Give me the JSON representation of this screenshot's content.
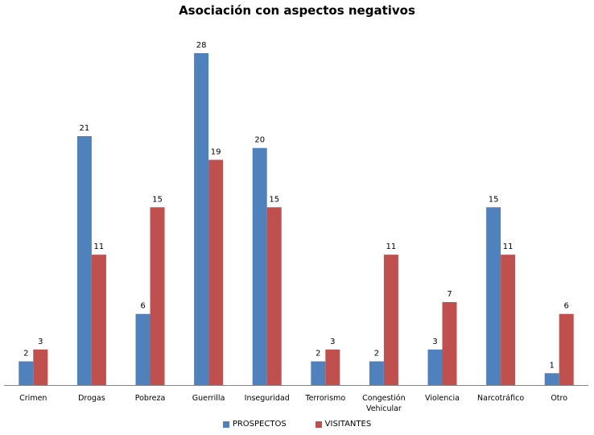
{
  "chart_data": {
    "type": "bar",
    "title": "Asociación con aspectos negativos",
    "categories": [
      "Crimen",
      "Drogas",
      "Pobreza",
      "Guerrilla",
      "Inseguridad",
      "Terrorismo",
      "Congestión Vehicular",
      "Violencia",
      "Narcotráfico",
      "Otro"
    ],
    "category_lines": [
      [
        "Crimen"
      ],
      [
        "Drogas"
      ],
      [
        "Pobreza"
      ],
      [
        "Guerrilla"
      ],
      [
        "Inseguridad"
      ],
      [
        "Terrorismo"
      ],
      [
        "Congestión",
        "Vehicular"
      ],
      [
        "Violencia"
      ],
      [
        "Narcotráfico"
      ],
      [
        "Otro"
      ]
    ],
    "series": [
      {
        "name": "PROSPECTOS",
        "values": [
          2,
          21,
          6,
          28,
          20,
          2,
          2,
          3,
          15,
          1
        ],
        "color": "#4F81BD"
      },
      {
        "name": "VISITANTES",
        "values": [
          3,
          11,
          15,
          19,
          15,
          3,
          11,
          7,
          11,
          6
        ],
        "color": "#C0504D"
      }
    ],
    "ylim": [
      0,
      28
    ],
    "grid": false,
    "legend_position": "bottom",
    "data_labels": true
  }
}
